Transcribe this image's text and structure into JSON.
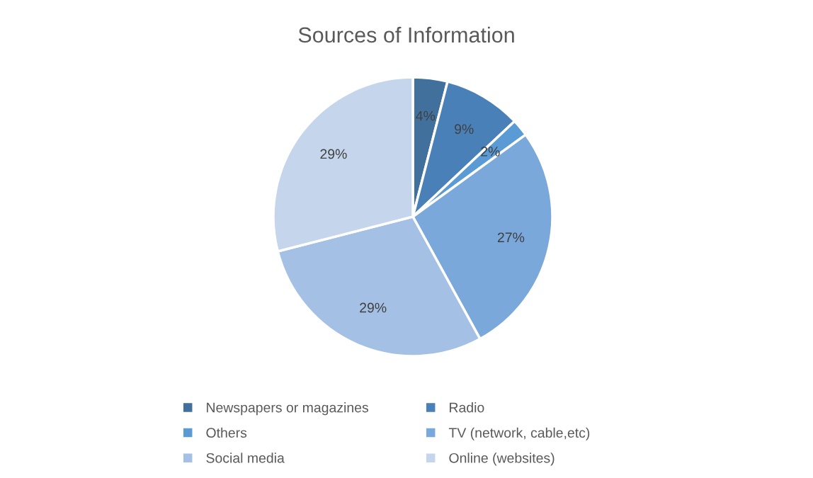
{
  "chart_data": {
    "type": "pie",
    "title": "Sources of Information",
    "categories": [
      "Newspapers or magazines",
      "Radio",
      "Others",
      "TV (network, cable,etc)",
      "Social media",
      "Online (websites)"
    ],
    "values": [
      4,
      9,
      2,
      27,
      29,
      29
    ],
    "value_labels": [
      "4%",
      "9%",
      "2%",
      "27%",
      "29%",
      "29%"
    ],
    "colors": [
      "#42709c",
      "#4a80b8",
      "#5b9bd5",
      "#7aa8da",
      "#a4c0e4",
      "#c5d5eb"
    ],
    "legend": "bottom"
  }
}
